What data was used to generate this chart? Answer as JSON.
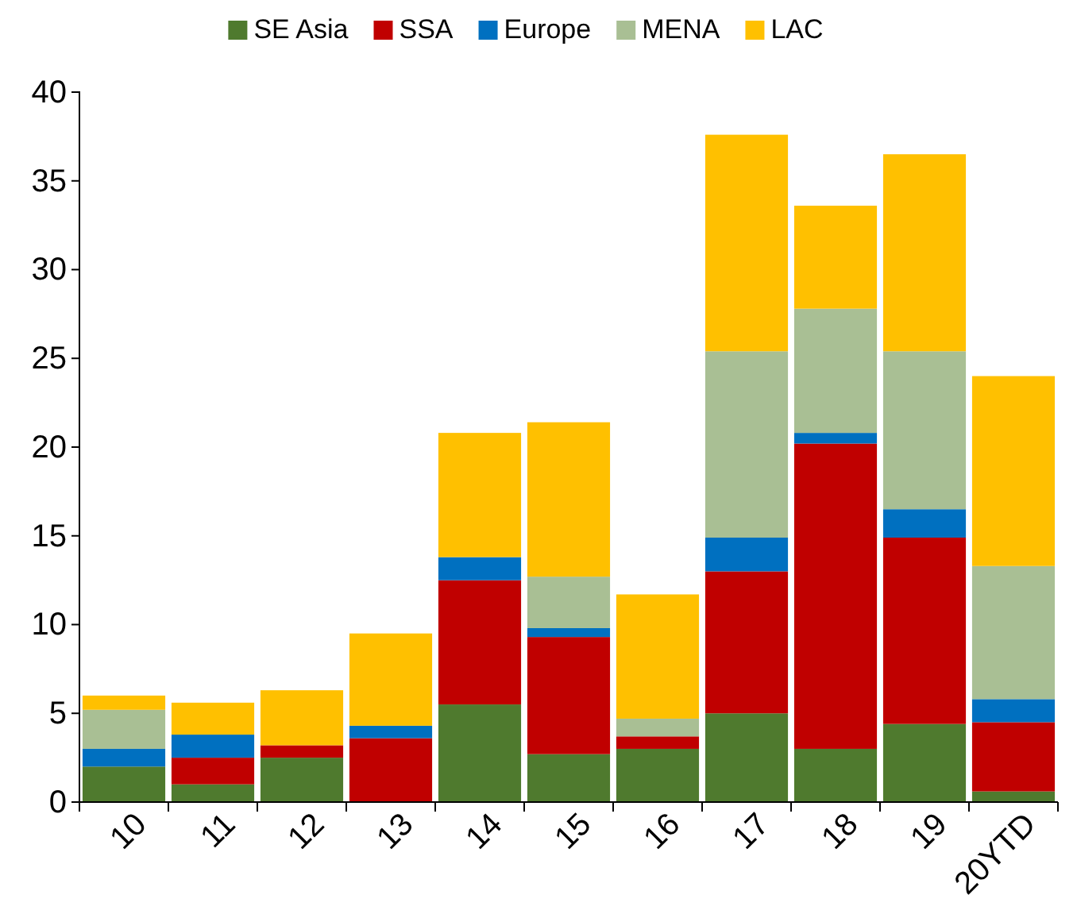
{
  "chart_data": {
    "type": "bar",
    "stacked": true,
    "categories": [
      "10",
      "11",
      "12",
      "13",
      "14",
      "15",
      "16",
      "17",
      "18",
      "19",
      "20YTD"
    ],
    "series": [
      {
        "name": "SE Asia",
        "color": "#4f7a2e",
        "values": [
          2,
          1,
          2.5,
          0,
          5.5,
          2.7,
          3,
          5,
          3,
          4.4,
          0.6
        ]
      },
      {
        "name": "SSA",
        "color": "#c00000",
        "values": [
          0,
          1.5,
          0.7,
          3.6,
          7,
          6.6,
          0.7,
          8,
          17.2,
          10.5,
          3.9
        ]
      },
      {
        "name": "Europe",
        "color": "#0070c0",
        "values": [
          1,
          1.3,
          0,
          0.7,
          1.3,
          0.5,
          0,
          1.9,
          0.6,
          1.6,
          1.3
        ]
      },
      {
        "name": "MENA",
        "color": "#a9bf94",
        "values": [
          2.2,
          0,
          0,
          0,
          0,
          2.9,
          1,
          10.5,
          7,
          8.9,
          7.5
        ]
      },
      {
        "name": "LAC",
        "color": "#ffc000",
        "values": [
          0.8,
          1.8,
          3.1,
          5.2,
          7,
          8.7,
          7,
          12.2,
          5.8,
          11.1,
          10.7
        ]
      }
    ],
    "ylim": [
      0,
      40
    ],
    "yticks": [
      0,
      5,
      10,
      15,
      20,
      25,
      30,
      35,
      40
    ],
    "grid": false,
    "legend": "top"
  }
}
